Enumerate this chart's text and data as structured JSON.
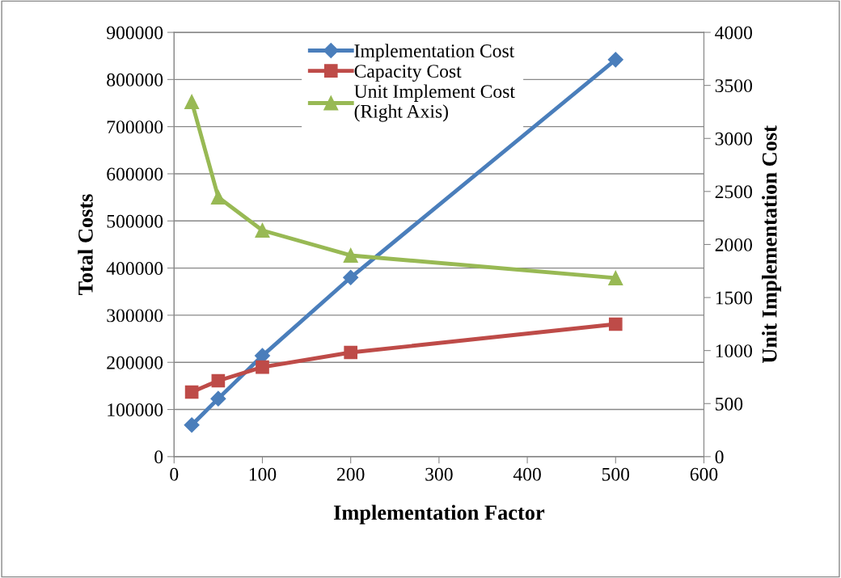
{
  "chart_data": {
    "type": "line",
    "xlabel": "Implementation Factor",
    "ylabel": "Total Costs",
    "y2label": "Unit Implementation Cost",
    "x": [
      20,
      50,
      100,
      200,
      500
    ],
    "series": [
      {
        "name": "Implementation Cost",
        "color": "#4a7ebb",
        "marker": "diamond",
        "values": [
          67000,
          123000,
          214000,
          380000,
          842000
        ]
      },
      {
        "name": "Capacity Cost",
        "color": "#be4b48",
        "marker": "square",
        "values": [
          137000,
          161000,
          190000,
          221000,
          281000
        ]
      },
      {
        "name": "Unit Implement Cost\n(Right Axis)",
        "color": "#98b954",
        "marker": "triangle",
        "axis": "y2",
        "values": [
          3345,
          2446,
          2133,
          1897,
          1684
        ]
      }
    ],
    "xlim": [
      0,
      600
    ],
    "xticks": [
      0,
      100,
      200,
      300,
      400,
      500,
      600
    ],
    "ylim": [
      0,
      900000
    ],
    "yticks": [
      0,
      100000,
      200000,
      300000,
      400000,
      500000,
      600000,
      700000,
      800000,
      900000
    ],
    "y2lim": [
      0,
      4000
    ],
    "y2ticks": [
      0,
      500,
      1000,
      1500,
      2000,
      2500,
      3000,
      3500,
      4000
    ],
    "grid": "y",
    "legend": "top",
    "line_style": "solid"
  }
}
